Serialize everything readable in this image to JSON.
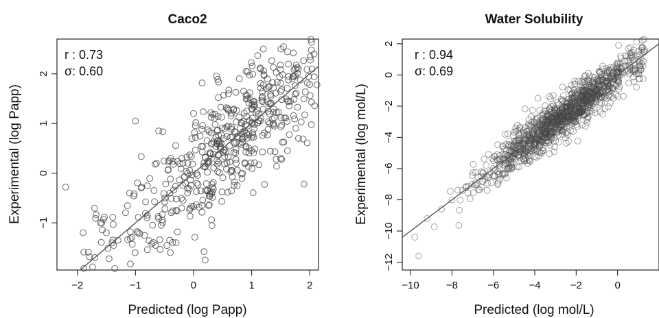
{
  "chart_data": [
    {
      "type": "scatter",
      "title": "Caco2",
      "xlabel": "Predicted (log Papp)",
      "ylabel": "Experimental (log Papp)",
      "xlim": [
        -2.35,
        2.15
      ],
      "ylim": [
        -1.95,
        2.7
      ],
      "xticks": [
        -2,
        -1,
        0,
        1,
        2
      ],
      "yticks": [
        -1,
        0,
        1,
        2
      ],
      "annotations": [
        "r : 0.73",
        "σ: 0.60"
      ],
      "grid": false,
      "fit_line": {
        "slope": 1,
        "intercept": 0
      },
      "marker_color": "#444444",
      "line_color": "#555555",
      "n_points": 520,
      "seed": 7,
      "x": [
        -2.2,
        -1.9,
        -1.7,
        -1.6,
        -1.5,
        -1.4,
        -1.3,
        -1.1,
        -1.0,
        -0.9,
        -0.8,
        -0.6,
        -0.4,
        -0.3,
        -0.1,
        0.0,
        0.2,
        0.4,
        0.6,
        0.8,
        1.0,
        1.2,
        1.3,
        1.5,
        1.7,
        1.9
      ],
      "y": [
        -0.28,
        -1.2,
        -1.7,
        -1.0,
        -1.2,
        -1.4,
        -1.35,
        -0.4,
        1.05,
        -0.3,
        -0.9,
        0.85,
        -1.6,
        -1.4,
        0.2,
        1.2,
        -1.75,
        0.6,
        1.6,
        0.9,
        1.3,
        2.5,
        1.4,
        0.3,
        1.9,
        -0.22
      ],
      "point_scatter_sd": 0.6
    },
    {
      "type": "scatter",
      "title": "Water Solubility",
      "xlabel": "Predicted (log mol/L)",
      "ylabel": "Experimental (log mol/L)",
      "xlim": [
        -10.4,
        2.0
      ],
      "ylim": [
        -12.5,
        2.3
      ],
      "xticks": [
        -10,
        -8,
        -6,
        -4,
        -2,
        0
      ],
      "yticks": [
        -12,
        -10,
        -8,
        -6,
        -4,
        -2,
        0,
        2
      ],
      "annotations": [
        "r : 0.94",
        "σ: 0.69"
      ],
      "grid": false,
      "fit_line": {
        "slope": 1,
        "intercept": 0
      },
      "marker_color": "#444444",
      "line_color": "#555555",
      "n_points": 1200,
      "seed": 13,
      "x": [
        -9.8,
        -9.6,
        -9.2,
        -8.5,
        -8.0,
        -7.5,
        -7.0,
        -6.5,
        -6.0,
        -5.5,
        -5.0,
        -4.5,
        -4.0,
        -3.5,
        -3.0,
        -2.5,
        -2.0,
        -1.5,
        -1.0,
        -0.5,
        0.0,
        0.5,
        1.0,
        1.3
      ],
      "y": [
        -10.4,
        -11.6,
        -9.2,
        -8.6,
        -8.0,
        -7.4,
        -7.0,
        -6.3,
        -6.0,
        -5.4,
        -5.0,
        -4.4,
        -4.0,
        -3.5,
        -3.0,
        -2.6,
        -2.0,
        -1.5,
        -1.0,
        -0.4,
        0.2,
        0.6,
        1.0,
        1.5
      ],
      "point_scatter_sd": 0.69
    }
  ]
}
